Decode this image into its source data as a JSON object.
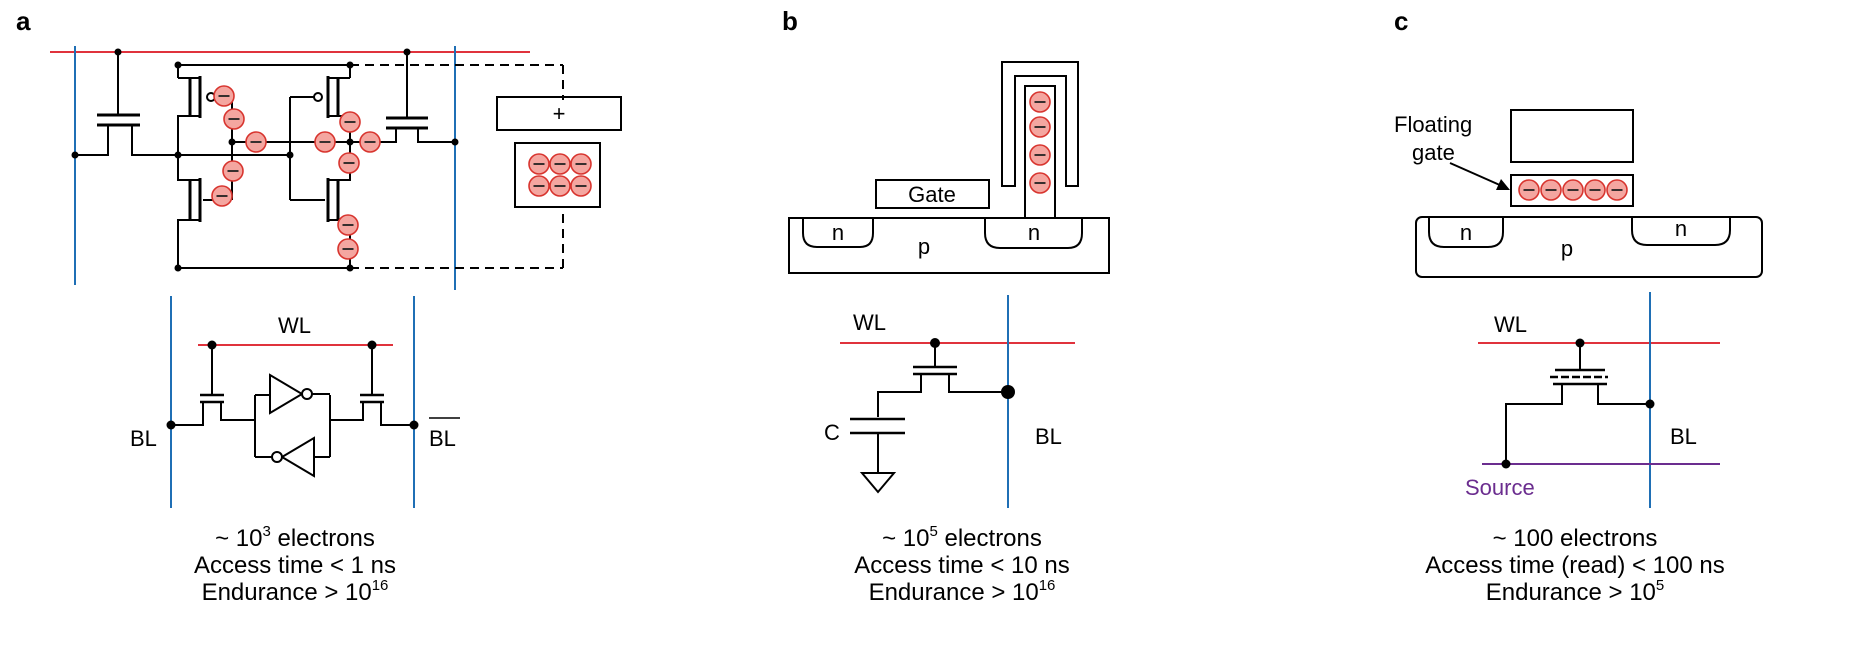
{
  "colors": {
    "word_line": "#e0323c",
    "bit_line": "#1f6fb5",
    "source_line": "#6b2d8f",
    "source_text": "#6b2d8f",
    "electron_fill": "#f4a6a0",
    "electron_stroke": "#d8352f",
    "wire": "#000000"
  },
  "panels": {
    "a": {
      "label": "a",
      "plus_sign": "+",
      "electron_sign": "–",
      "wl_label": "WL",
      "bl_label": "BL",
      "blbar_label": "BL",
      "caption": {
        "line1_prefix": "~ 10",
        "line1_exp": "3",
        "line1_suffix": " electrons",
        "line2": "Access time < 1 ns",
        "line3_prefix": "Endurance > 10",
        "line3_exp": "16"
      }
    },
    "b": {
      "label": "b",
      "gate_label": "Gate",
      "n_label": "n",
      "p_label": "p",
      "wl_label": "WL",
      "bl_label": "BL",
      "c_label": "C",
      "caption": {
        "line1_prefix": "~ 10",
        "line1_exp": "5",
        "line1_suffix": " electrons",
        "line2": "Access time < 10 ns",
        "line3_prefix": "Endurance > 10",
        "line3_exp": "16"
      }
    },
    "c": {
      "label": "c",
      "floating_gate_line1": "Floating",
      "floating_gate_line2": "gate",
      "n_label": "n",
      "p_label": "p",
      "wl_label": "WL",
      "bl_label": "BL",
      "source_label": "Source",
      "caption": {
        "line1": "~ 100 electrons",
        "line2": "Access time (read) < 100 ns",
        "line3_prefix": "Endurance > 10",
        "line3_exp": "5"
      }
    }
  }
}
